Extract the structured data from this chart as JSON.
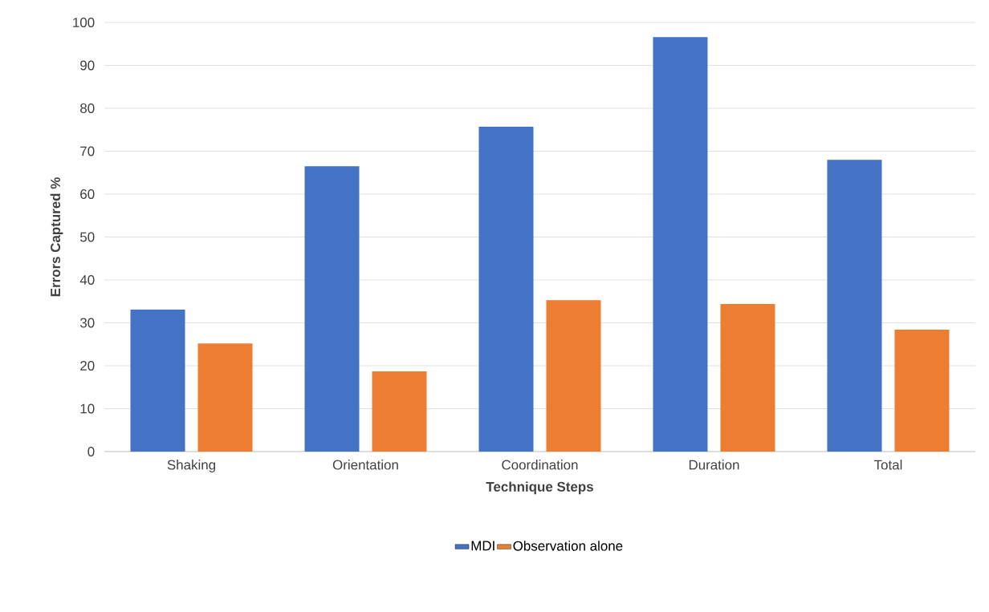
{
  "chart_data": {
    "type": "bar",
    "xlabel": "Technique Steps",
    "ylabel": "Errors Captured %",
    "categories": [
      "Shaking",
      "Orientation",
      "Coordination",
      "Duration",
      "Total"
    ],
    "series": [
      {
        "name": "MDI",
        "color": "#4472c4",
        "values": [
          33.1,
          66.5,
          75.7,
          96.6,
          68.0
        ]
      },
      {
        "name": "Observation alone",
        "color": "#ed7d31",
        "values": [
          25.2,
          18.7,
          35.3,
          34.4,
          28.4
        ]
      }
    ],
    "ylim": [
      0,
      100
    ],
    "yticks": [
      0,
      10,
      20,
      30,
      40,
      50,
      60,
      70,
      80,
      90,
      100
    ],
    "grid": "y",
    "legend": "bottom"
  }
}
